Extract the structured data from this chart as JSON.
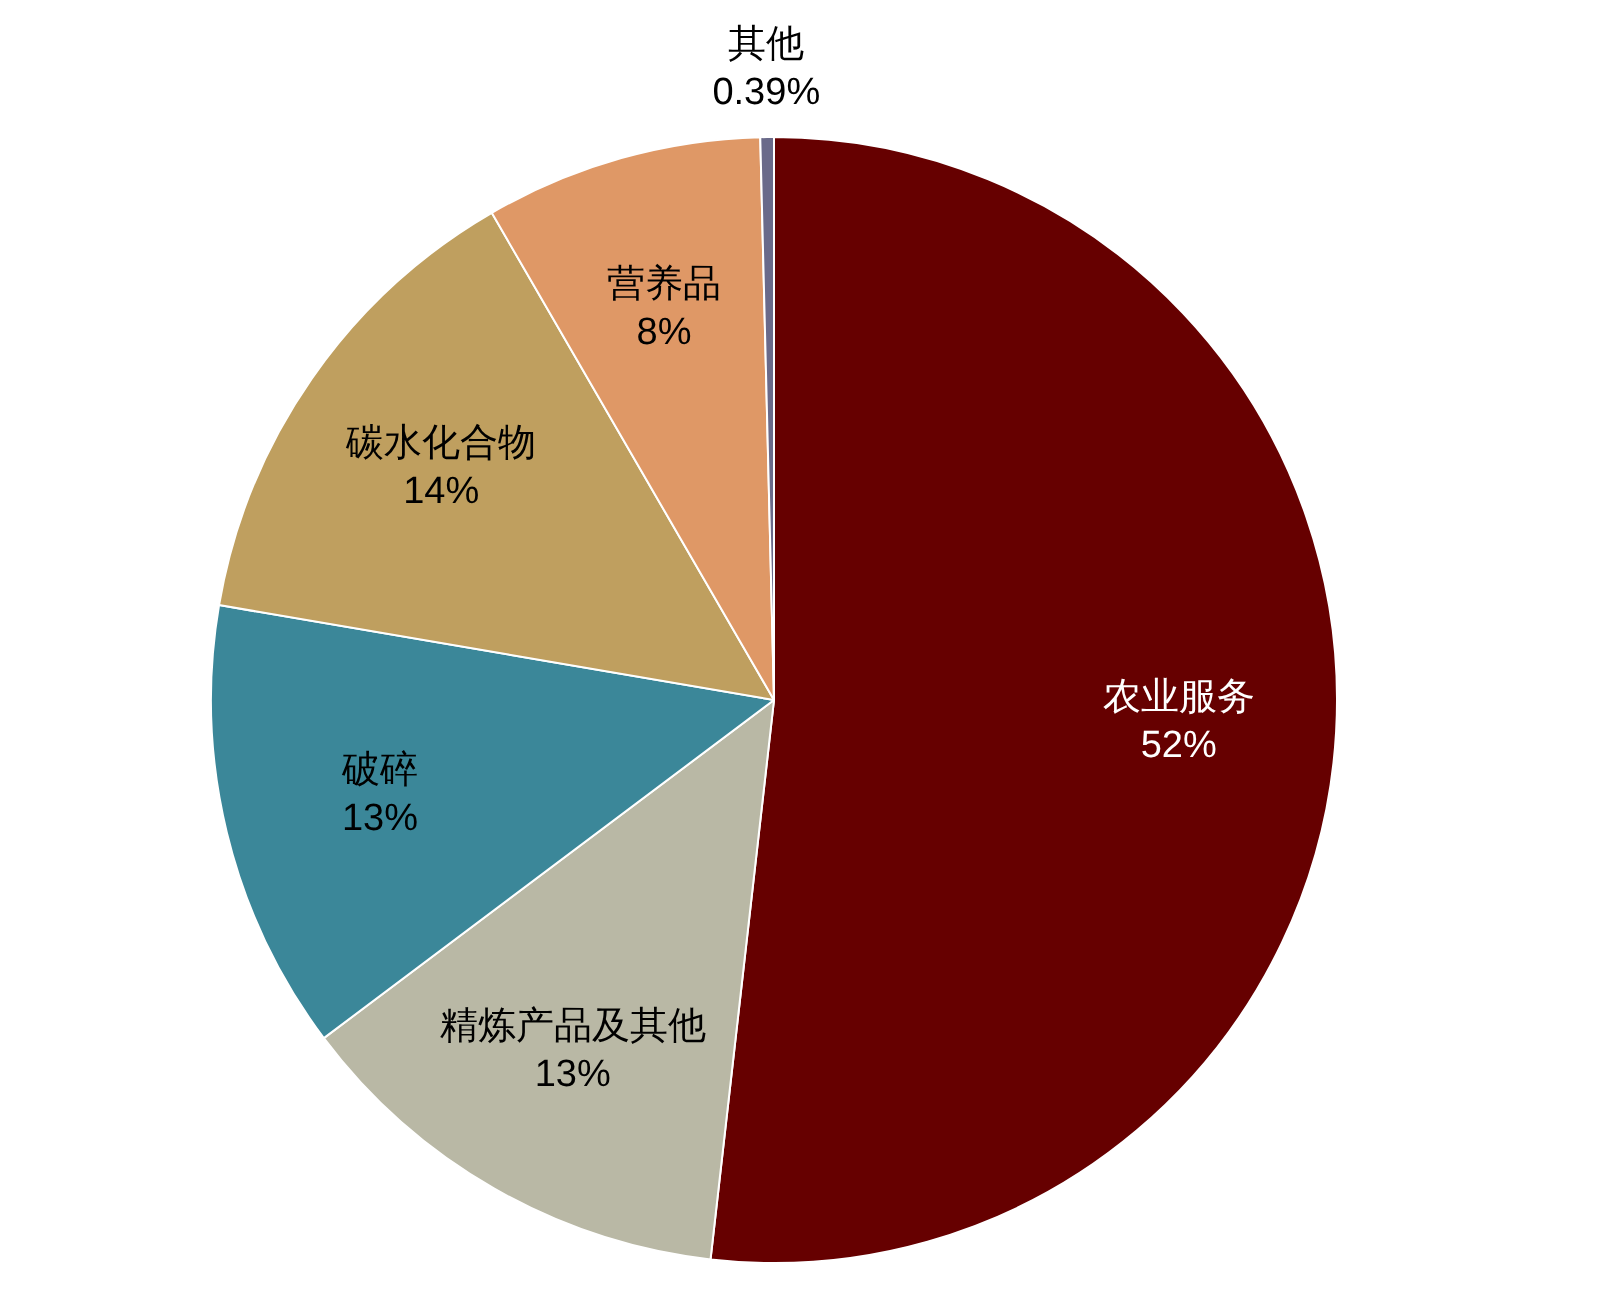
{
  "chart_data": {
    "type": "pie",
    "categories": [
      "农业服务",
      "精炼产品及其他",
      "破碎",
      "碳水化合物",
      "营养品",
      "其他"
    ],
    "values": [
      52,
      13,
      13,
      14,
      8,
      0.39
    ],
    "value_labels": [
      "52%",
      "13%",
      "13%",
      "14%",
      "8%",
      "0.39%"
    ],
    "colors": [
      "#660000",
      "#b9b8a5",
      "#3b8799",
      "#bf9f5f",
      "#df9866",
      "#6a6a8a"
    ],
    "legend": false
  }
}
